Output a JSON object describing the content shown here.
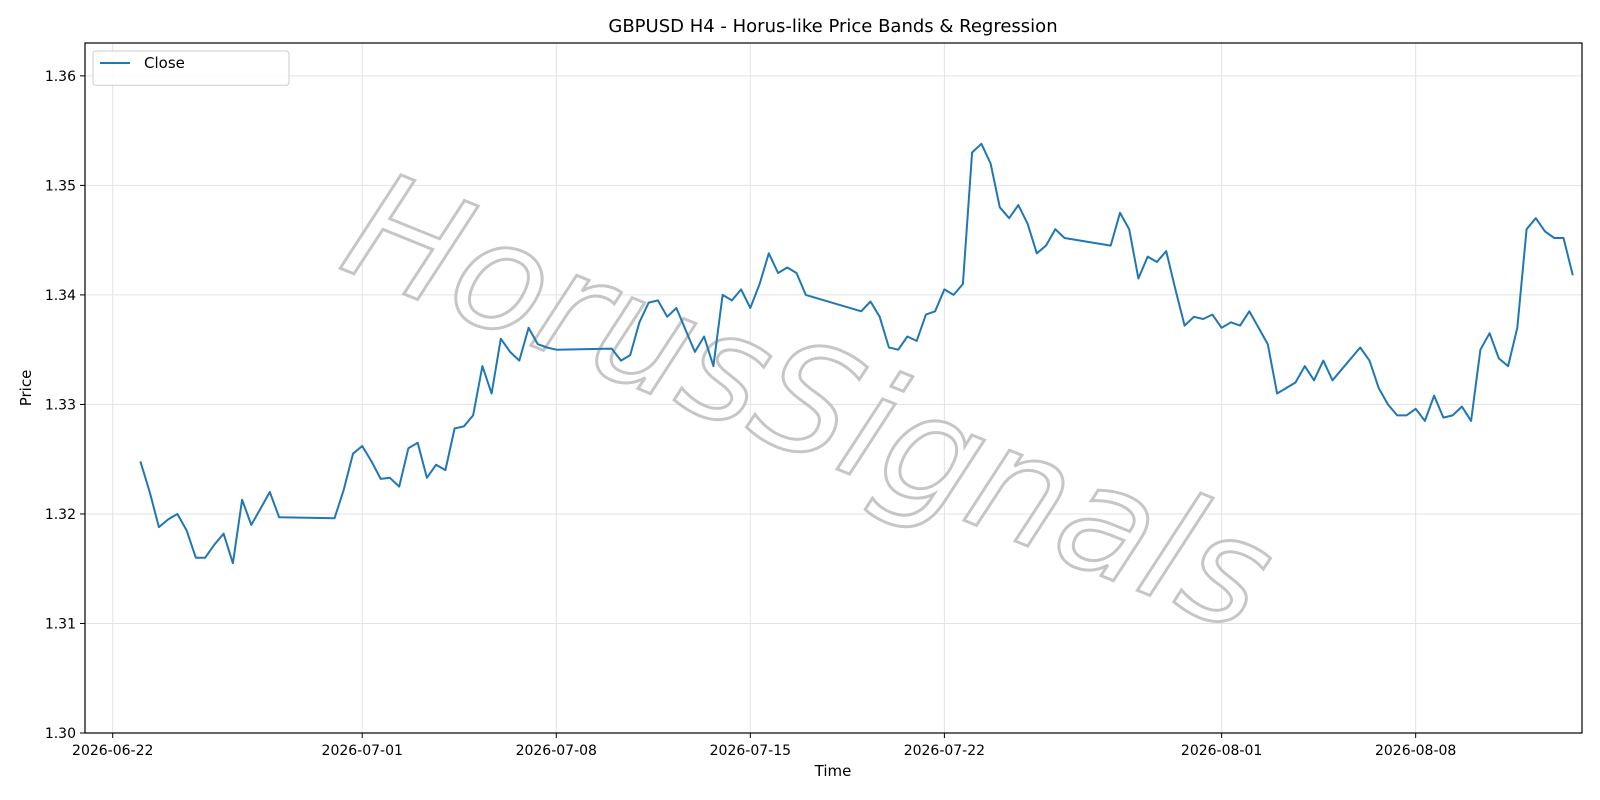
{
  "chart_data": {
    "type": "line",
    "title": "GBPUSD H4 - Horus-like Price Bands & Regression",
    "xlabel": "Time",
    "ylabel": "Price",
    "ylim": [
      1.3,
      1.363
    ],
    "xlim": [
      "2026-06-21T00:00",
      "2026-08-14T00:00"
    ],
    "y_ticks": [
      "1.30",
      "1.31",
      "1.32",
      "1.33",
      "1.34",
      "1.35",
      "1.36"
    ],
    "x_ticks": [
      "2026-06-22",
      "2026-07-01",
      "2026-07-08",
      "2026-07-15",
      "2026-07-22",
      "2026-08-01",
      "2026-08-08"
    ],
    "grid": true,
    "legend_position": "top-left",
    "watermark": "HorusSignals",
    "series": [
      {
        "name": "Close",
        "color": "#1f77b4",
        "points": [
          [
            "2026-06-23T00:00",
            1.3248
          ],
          [
            "2026-06-23T08:00",
            1.322
          ],
          [
            "2026-06-23T16:00",
            1.3188
          ],
          [
            "2026-06-24T00:00",
            1.3195
          ],
          [
            "2026-06-24T08:00",
            1.32
          ],
          [
            "2026-06-24T16:00",
            1.3185
          ],
          [
            "2026-06-25T00:00",
            1.316
          ],
          [
            "2026-06-25T08:00",
            1.316
          ],
          [
            "2026-06-25T16:00",
            1.3172
          ],
          [
            "2026-06-26T00:00",
            1.3182
          ],
          [
            "2026-06-26T08:00",
            1.3155
          ],
          [
            "2026-06-26T16:00",
            1.3213
          ],
          [
            "2026-06-27T00:00",
            1.319
          ],
          [
            "2026-06-27T08:00",
            1.3205
          ],
          [
            "2026-06-27T16:00",
            1.322
          ],
          [
            "2026-06-28T00:00",
            1.3197
          ],
          [
            "2026-06-30T00:00",
            1.3196
          ],
          [
            "2026-06-30T08:00",
            1.3222
          ],
          [
            "2026-06-30T16:00",
            1.3255
          ],
          [
            "2026-07-01T00:00",
            1.3262
          ],
          [
            "2026-07-01T08:00",
            1.3248
          ],
          [
            "2026-07-01T16:00",
            1.3232
          ],
          [
            "2026-07-02T00:00",
            1.3233
          ],
          [
            "2026-07-02T08:00",
            1.3225
          ],
          [
            "2026-07-02T16:00",
            1.326
          ],
          [
            "2026-07-03T00:00",
            1.3265
          ],
          [
            "2026-07-03T08:00",
            1.3233
          ],
          [
            "2026-07-03T16:00",
            1.3245
          ],
          [
            "2026-07-04T00:00",
            1.324
          ],
          [
            "2026-07-04T08:00",
            1.3278
          ],
          [
            "2026-07-04T16:00",
            1.328
          ],
          [
            "2026-07-05T00:00",
            1.329
          ],
          [
            "2026-07-05T08:00",
            1.3335
          ],
          [
            "2026-07-05T16:00",
            1.331
          ],
          [
            "2026-07-06T00:00",
            1.336
          ],
          [
            "2026-07-06T08:00",
            1.3348
          ],
          [
            "2026-07-06T16:00",
            1.334
          ],
          [
            "2026-07-07T00:00",
            1.337
          ],
          [
            "2026-07-07T08:00",
            1.3355
          ],
          [
            "2026-07-07T16:00",
            1.3352
          ],
          [
            "2026-07-08T00:00",
            1.335
          ],
          [
            "2026-07-10T00:00",
            1.3351
          ],
          [
            "2026-07-10T08:00",
            1.334
          ],
          [
            "2026-07-10T16:00",
            1.3345
          ],
          [
            "2026-07-11T00:00",
            1.3375
          ],
          [
            "2026-07-11T08:00",
            1.3393
          ],
          [
            "2026-07-11T16:00",
            1.3395
          ],
          [
            "2026-07-12T00:00",
            1.338
          ],
          [
            "2026-07-12T08:00",
            1.3388
          ],
          [
            "2026-07-12T16:00",
            1.3368
          ],
          [
            "2026-07-13T00:00",
            1.3348
          ],
          [
            "2026-07-13T08:00",
            1.3362
          ],
          [
            "2026-07-13T16:00",
            1.3335
          ],
          [
            "2026-07-14T00:00",
            1.34
          ],
          [
            "2026-07-14T08:00",
            1.3395
          ],
          [
            "2026-07-14T16:00",
            1.3405
          ],
          [
            "2026-07-15T00:00",
            1.3388
          ],
          [
            "2026-07-15T08:00",
            1.341
          ],
          [
            "2026-07-15T16:00",
            1.3438
          ],
          [
            "2026-07-16T00:00",
            1.342
          ],
          [
            "2026-07-16T08:00",
            1.3425
          ],
          [
            "2026-07-16T16:00",
            1.342
          ],
          [
            "2026-07-17T00:00",
            1.34
          ],
          [
            "2026-07-19T00:00",
            1.3385
          ],
          [
            "2026-07-19T08:00",
            1.3394
          ],
          [
            "2026-07-19T16:00",
            1.338
          ],
          [
            "2026-07-20T00:00",
            1.3352
          ],
          [
            "2026-07-20T08:00",
            1.335
          ],
          [
            "2026-07-20T16:00",
            1.3362
          ],
          [
            "2026-07-21T00:00",
            1.3358
          ],
          [
            "2026-07-21T08:00",
            1.3382
          ],
          [
            "2026-07-21T16:00",
            1.3385
          ],
          [
            "2026-07-22T00:00",
            1.3405
          ],
          [
            "2026-07-22T08:00",
            1.34
          ],
          [
            "2026-07-22T16:00",
            1.341
          ],
          [
            "2026-07-23T00:00",
            1.353
          ],
          [
            "2026-07-23T08:00",
            1.3538
          ],
          [
            "2026-07-23T16:00",
            1.352
          ],
          [
            "2026-07-24T00:00",
            1.348
          ],
          [
            "2026-07-24T08:00",
            1.347
          ],
          [
            "2026-07-24T16:00",
            1.3482
          ],
          [
            "2026-07-25T00:00",
            1.3465
          ],
          [
            "2026-07-25T08:00",
            1.3438
          ],
          [
            "2026-07-25T16:00",
            1.3445
          ],
          [
            "2026-07-26T00:00",
            1.346
          ],
          [
            "2026-07-26T08:00",
            1.3452
          ],
          [
            "2026-07-28T00:00",
            1.3445
          ],
          [
            "2026-07-28T08:00",
            1.3475
          ],
          [
            "2026-07-28T16:00",
            1.346
          ],
          [
            "2026-07-29T00:00",
            1.3415
          ],
          [
            "2026-07-29T08:00",
            1.3435
          ],
          [
            "2026-07-29T16:00",
            1.343
          ],
          [
            "2026-07-30T00:00",
            1.344
          ],
          [
            "2026-07-30T08:00",
            1.3405
          ],
          [
            "2026-07-30T16:00",
            1.3372
          ],
          [
            "2026-07-31T00:00",
            1.338
          ],
          [
            "2026-07-31T08:00",
            1.3378
          ],
          [
            "2026-07-31T16:00",
            1.3382
          ],
          [
            "2026-08-01T00:00",
            1.337
          ],
          [
            "2026-08-01T08:00",
            1.3375
          ],
          [
            "2026-08-01T16:00",
            1.3372
          ],
          [
            "2026-08-02T00:00",
            1.3385
          ],
          [
            "2026-08-02T08:00",
            1.337
          ],
          [
            "2026-08-02T16:00",
            1.3355
          ],
          [
            "2026-08-03T00:00",
            1.331
          ],
          [
            "2026-08-03T08:00",
            1.3315
          ],
          [
            "2026-08-03T16:00",
            1.332
          ],
          [
            "2026-08-04T00:00",
            1.3335
          ],
          [
            "2026-08-04T08:00",
            1.3322
          ],
          [
            "2026-08-04T16:00",
            1.334
          ],
          [
            "2026-08-05T00:00",
            1.3322
          ],
          [
            "2026-08-06T00:00",
            1.3352
          ],
          [
            "2026-08-06T08:00",
            1.334
          ],
          [
            "2026-08-06T16:00",
            1.3315
          ],
          [
            "2026-08-07T00:00",
            1.33
          ],
          [
            "2026-08-07T08:00",
            1.329
          ],
          [
            "2026-08-07T16:00",
            1.329
          ],
          [
            "2026-08-08T00:00",
            1.3296
          ],
          [
            "2026-08-08T08:00",
            1.3285
          ],
          [
            "2026-08-08T16:00",
            1.3308
          ],
          [
            "2026-08-09T00:00",
            1.3288
          ],
          [
            "2026-08-09T08:00",
            1.329
          ],
          [
            "2026-08-09T16:00",
            1.3298
          ],
          [
            "2026-08-10T00:00",
            1.3285
          ],
          [
            "2026-08-10T08:00",
            1.335
          ],
          [
            "2026-08-10T16:00",
            1.3365
          ],
          [
            "2026-08-11T00:00",
            1.3342
          ],
          [
            "2026-08-11T08:00",
            1.3335
          ],
          [
            "2026-08-11T16:00",
            1.337
          ],
          [
            "2026-08-12T00:00",
            1.346
          ],
          [
            "2026-08-12T08:00",
            1.347
          ],
          [
            "2026-08-12T16:00",
            1.3458
          ],
          [
            "2026-08-13T00:00",
            1.3452
          ],
          [
            "2026-08-13T08:00",
            1.3452
          ],
          [
            "2026-08-13T16:00",
            1.3418
          ]
        ]
      }
    ]
  }
}
